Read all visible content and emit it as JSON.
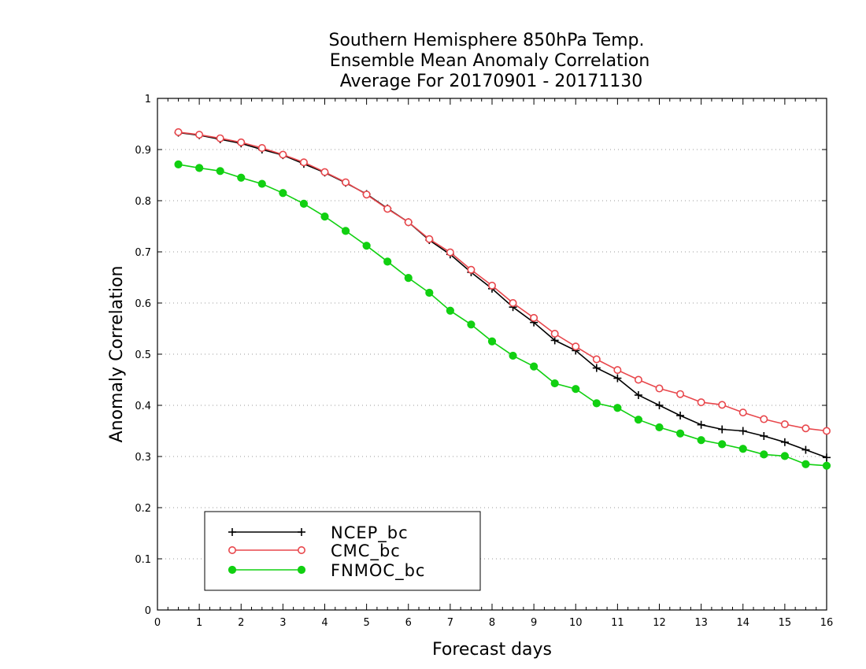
{
  "chart_data": {
    "type": "line",
    "title": [
      "Southern Hemisphere 850hPa Temp.",
      "Ensemble Mean Anomaly Correlation",
      "Average For 20170901 - 20171130"
    ],
    "xlabel": "Forecast days",
    "ylabel": "Anomaly Correlation",
    "xlim": [
      0,
      16
    ],
    "ylim": [
      0,
      1
    ],
    "xticks": [
      0,
      1,
      2,
      3,
      4,
      5,
      6,
      7,
      8,
      9,
      10,
      11,
      12,
      13,
      14,
      15,
      16
    ],
    "yticks": [
      0,
      0.1,
      0.2,
      0.3,
      0.4,
      0.5,
      0.6,
      0.7,
      0.8,
      0.9,
      1
    ],
    "ytick_labels": [
      "0",
      "0.1",
      "0.2",
      "0.3",
      "0.4",
      "0.5",
      "0.6",
      "0.7",
      "0.8",
      "0.9",
      "1"
    ],
    "grid": "horizontal dotted",
    "legend_position": "bottom-left",
    "x": [
      0.5,
      1,
      1.5,
      2,
      2.5,
      3,
      3.5,
      4,
      4.5,
      5,
      5.5,
      6,
      6.5,
      7,
      7.5,
      8,
      8.5,
      9,
      9.5,
      10,
      10.5,
      11,
      11.5,
      12,
      12.5,
      13,
      13.5,
      14,
      14.5,
      15,
      15.5,
      16
    ],
    "series": [
      {
        "name": "NCEP_bc",
        "color": "#000000",
        "marker": "plus",
        "values": [
          0.933,
          0.928,
          0.92,
          0.912,
          0.9,
          0.889,
          0.872,
          0.855,
          0.835,
          0.813,
          0.785,
          0.758,
          0.723,
          0.695,
          0.66,
          0.628,
          0.592,
          0.562,
          0.527,
          0.507,
          0.473,
          0.453,
          0.42,
          0.4,
          0.38,
          0.362,
          0.353,
          0.35,
          0.34,
          0.328,
          0.313,
          0.298
        ]
      },
      {
        "name": "CMC_bc",
        "color": "#e8474c",
        "marker": "open-circle",
        "values": [
          0.934,
          0.929,
          0.922,
          0.914,
          0.903,
          0.89,
          0.875,
          0.856,
          0.836,
          0.812,
          0.784,
          0.758,
          0.725,
          0.699,
          0.665,
          0.634,
          0.6,
          0.571,
          0.54,
          0.515,
          0.49,
          0.469,
          0.45,
          0.433,
          0.422,
          0.406,
          0.401,
          0.386,
          0.373,
          0.363,
          0.355,
          0.35
        ]
      },
      {
        "name": "FNMOC_bc",
        "color": "#11d011",
        "marker": "filled-circle",
        "values": [
          0.871,
          0.864,
          0.858,
          0.845,
          0.833,
          0.815,
          0.794,
          0.769,
          0.741,
          0.712,
          0.681,
          0.649,
          0.62,
          0.585,
          0.558,
          0.525,
          0.497,
          0.476,
          0.443,
          0.432,
          0.404,
          0.395,
          0.372,
          0.357,
          0.345,
          0.332,
          0.324,
          0.315,
          0.304,
          0.301,
          0.285,
          0.282
        ]
      }
    ]
  }
}
